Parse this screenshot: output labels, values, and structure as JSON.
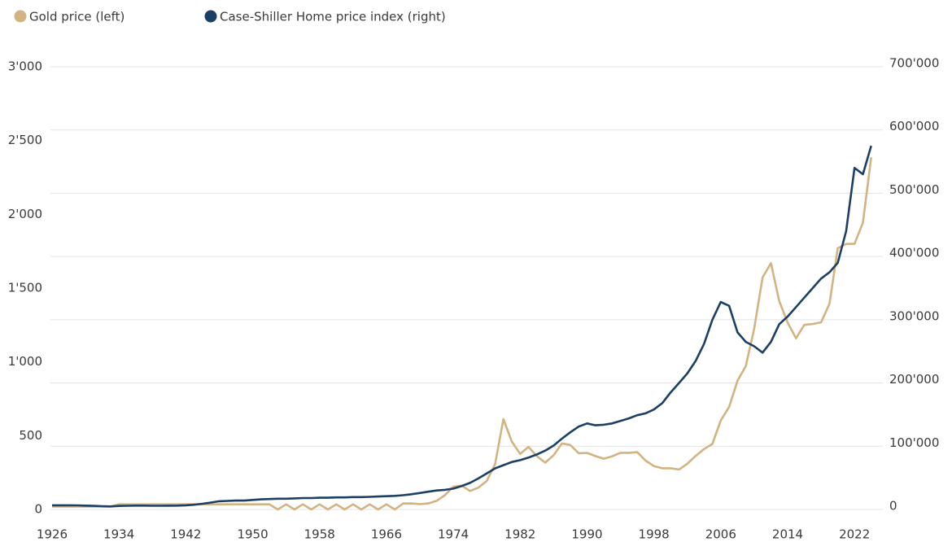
{
  "chart_data": {
    "type": "line",
    "x": [
      1926,
      1927,
      1928,
      1929,
      1930,
      1931,
      1932,
      1933,
      1934,
      1935,
      1936,
      1937,
      1938,
      1939,
      1940,
      1941,
      1942,
      1943,
      1944,
      1945,
      1946,
      1947,
      1948,
      1949,
      1950,
      1951,
      1952,
      1953,
      1954,
      1955,
      1956,
      1957,
      1958,
      1959,
      1960,
      1961,
      1962,
      1963,
      1964,
      1965,
      1966,
      1967,
      1968,
      1969,
      1970,
      1971,
      1972,
      1973,
      1974,
      1975,
      1976,
      1977,
      1978,
      1979,
      1980,
      1981,
      1982,
      1983,
      1984,
      1985,
      1986,
      1987,
      1988,
      1989,
      1990,
      1991,
      1992,
      1993,
      1994,
      1995,
      1996,
      1997,
      1998,
      1999,
      2000,
      2001,
      2002,
      2003,
      2004,
      2005,
      2006,
      2007,
      2008,
      2009,
      2010,
      2011,
      2012,
      2013,
      2014,
      2015,
      2016,
      2017,
      2018,
      2019,
      2020,
      2021,
      2022,
      2023,
      2024
    ],
    "series": [
      {
        "name": "Gold price (left)",
        "color": "#d2b381",
        "axis": "y",
        "values": [
          20,
          20,
          20,
          20,
          20,
          20,
          20,
          20,
          35,
          35,
          35,
          35,
          35,
          35,
          35,
          35,
          35,
          35,
          35,
          35,
          35,
          35,
          35,
          35,
          35,
          35,
          35,
          0,
          35,
          0,
          35,
          0,
          35,
          0,
          35,
          0,
          35,
          0,
          35,
          0,
          35,
          0,
          40,
          41,
          36,
          41,
          58,
          97,
          154,
          161,
          125,
          148,
          193,
          307,
          612,
          460,
          376,
          424,
          361,
          317,
          368,
          447,
          437,
          381,
          383,
          362,
          344,
          360,
          384,
          384,
          388,
          331,
          294,
          279,
          279,
          271,
          310,
          363,
          409,
          444,
          603,
          695,
          872,
          972,
          1225,
          1572,
          1669,
          1411,
          1266,
          1160,
          1251,
          1257,
          1268,
          1393,
          1770,
          1799,
          1800,
          1943,
          2386
        ]
      },
      {
        "name": "Case-Shiller Home price index (right)",
        "color": "#1c3f66",
        "axis": "y2",
        "values": [
          6500,
          6500,
          6500,
          6400,
          6000,
          5700,
          5200,
          4800,
          5500,
          5800,
          6000,
          6000,
          5800,
          5800,
          5900,
          6100,
          6500,
          7500,
          9000,
          11000,
          13000,
          13500,
          14000,
          14000,
          15000,
          16000,
          16500,
          17000,
          17000,
          17500,
          18000,
          18000,
          18500,
          18500,
          19000,
          19000,
          19500,
          19500,
          20000,
          20500,
          21000,
          21500,
          22500,
          24000,
          26000,
          28000,
          30000,
          31000,
          33000,
          37000,
          42000,
          49000,
          57000,
          65000,
          70000,
          75000,
          78000,
          82000,
          87000,
          93000,
          101000,
          112000,
          122000,
          131000,
          136000,
          133000,
          134000,
          136000,
          140000,
          144000,
          149000,
          152000,
          158000,
          168000,
          185000,
          200000,
          215000,
          235000,
          262000,
          300000,
          328000,
          322000,
          280000,
          265000,
          258000,
          248000,
          265000,
          293000,
          305000,
          320000,
          335000,
          350000,
          365000,
          375000,
          390000,
          440000,
          540000,
          530000,
          575000
        ]
      }
    ],
    "xlim": [
      1926,
      2025
    ],
    "xticks": [
      1926,
      1934,
      1942,
      1950,
      1958,
      1966,
      1974,
      1982,
      1990,
      1998,
      2006,
      2014,
      2022
    ],
    "ylim": [
      0,
      3000
    ],
    "yticks": [
      0,
      500,
      {
        "value": 1000,
        "label": "1'000"
      },
      {
        "value": 1500,
        "label": "1'500"
      },
      {
        "value": 2000,
        "label": "2'000"
      },
      {
        "value": 2500,
        "label": "2'500"
      },
      {
        "value": 3000,
        "label": "3'000"
      }
    ],
    "y2lim": [
      0,
      700000
    ],
    "y2ticks": [
      0,
      {
        "value": 100000,
        "label": "100'000"
      },
      {
        "value": 200000,
        "label": "200'000"
      },
      {
        "value": 300000,
        "label": "300'000"
      },
      {
        "value": 400000,
        "label": "400'000"
      },
      {
        "value": 500000,
        "label": "500'000"
      },
      {
        "value": 600000,
        "label": "600'000"
      },
      {
        "value": 700000,
        "label": "700'000"
      }
    ],
    "grid": true,
    "legend": "top-left"
  }
}
